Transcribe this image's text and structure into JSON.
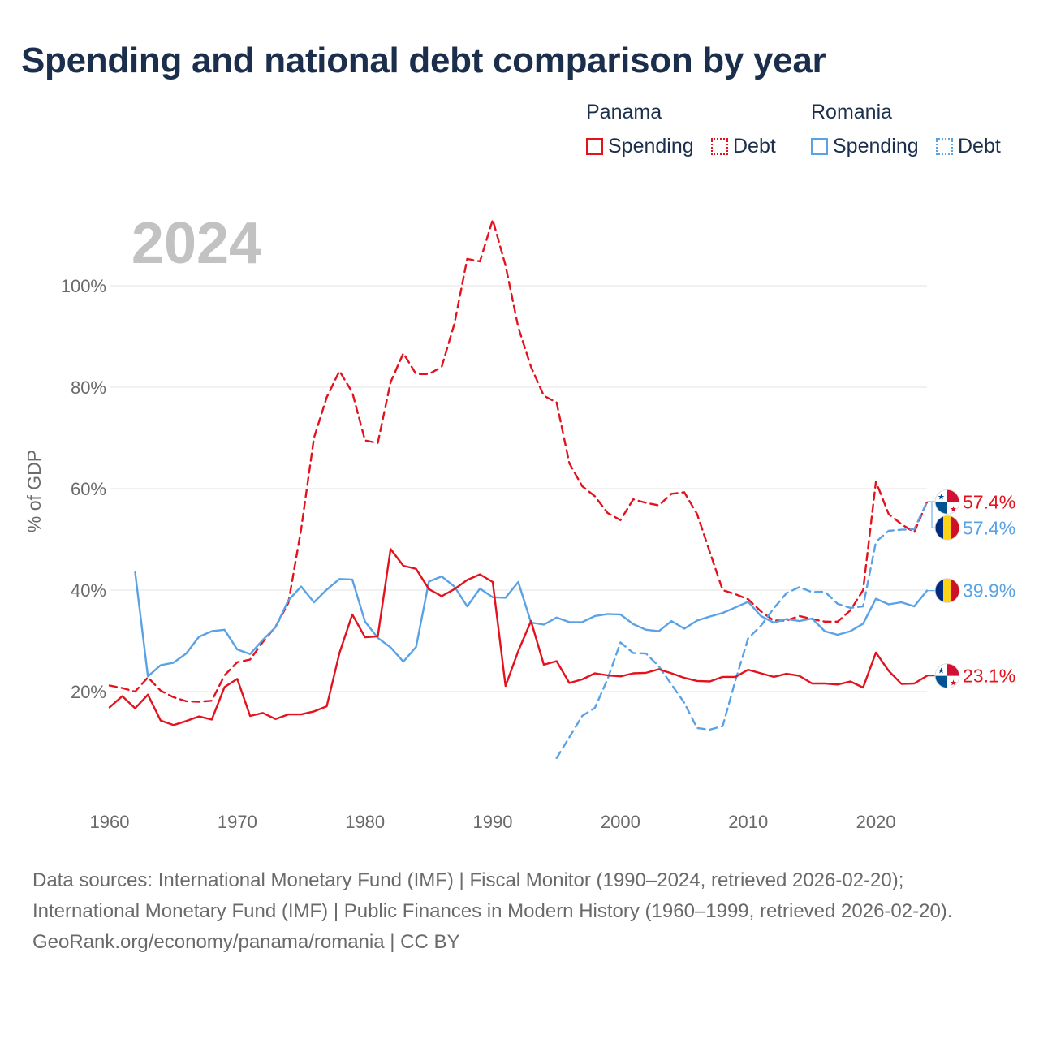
{
  "title": "Spending and national debt comparison by year",
  "legend": {
    "groups": [
      {
        "country": "Panama",
        "spending_label": "Spending",
        "debt_label": "Debt",
        "color": "#e3121c"
      },
      {
        "country": "Romania",
        "spending_label": "Spending",
        "debt_label": "Debt",
        "color": "#5aa2e6"
      }
    ]
  },
  "sources": {
    "text": "Data sources: International Monetary Fund (IMF) | Fiscal Monitor (1990–2024, retrieved 2026-02-20); International Monetary Fund (IMF) | Public Finances in Modern History (1960–1999, retrieved 2026-02-20).",
    "link": "GeoRank.org/economy/panama/romania | CC BY"
  },
  "chart_data": {
    "type": "line",
    "title": "Spending and national debt comparison by year",
    "year_label": "2024",
    "ylabel": "% of GDP",
    "xlabel": "",
    "xlim": [
      1960,
      2024
    ],
    "ylim": [
      0,
      118
    ],
    "x_ticks": [
      1960,
      1970,
      1980,
      1990,
      2000,
      2010,
      2020
    ],
    "y_ticks": [
      {
        "value": 20,
        "label": "20%"
      },
      {
        "value": 40,
        "label": "40%"
      },
      {
        "value": 60,
        "label": "60%"
      },
      {
        "value": 80,
        "label": "80%"
      },
      {
        "value": 100,
        "label": "100%"
      }
    ],
    "grid": true,
    "series": [
      {
        "name": "Panama Debt",
        "country": "Panama",
        "indicator": "Debt",
        "color": "#e3121c",
        "dashed": true,
        "end_label": "57.4%",
        "flag": "panama",
        "points": [
          [
            1960,
            21.2
          ],
          [
            1961,
            20.7
          ],
          [
            1962,
            20.0
          ],
          [
            1963,
            22.8
          ],
          [
            1964,
            20.2
          ],
          [
            1965,
            18.9
          ],
          [
            1966,
            18.1
          ],
          [
            1967,
            18.0
          ],
          [
            1968,
            18.2
          ],
          [
            1969,
            23.2
          ],
          [
            1970,
            25.8
          ],
          [
            1971,
            26.3
          ],
          [
            1972,
            29.8
          ],
          [
            1973,
            32.8
          ],
          [
            1974,
            37.5
          ],
          [
            1975,
            52.0
          ],
          [
            1976,
            70.0
          ],
          [
            1977,
            78.0
          ],
          [
            1978,
            83.2
          ],
          [
            1979,
            79.0
          ],
          [
            1980,
            69.5
          ],
          [
            1981,
            69.0
          ],
          [
            1982,
            81.0
          ],
          [
            1983,
            86.7
          ],
          [
            1984,
            82.6
          ],
          [
            1985,
            82.6
          ],
          [
            1986,
            84.0
          ],
          [
            1987,
            92.5
          ],
          [
            1988,
            105.3
          ],
          [
            1989,
            104.8
          ],
          [
            1990,
            113.0
          ],
          [
            1991,
            104.0
          ],
          [
            1992,
            91.8
          ],
          [
            1993,
            84.0
          ],
          [
            1994,
            78.3
          ],
          [
            1995,
            77.0
          ],
          [
            1996,
            65.0
          ],
          [
            1997,
            60.5
          ],
          [
            1998,
            58.5
          ],
          [
            1999,
            55.2
          ],
          [
            2000,
            53.8
          ],
          [
            2001,
            57.9
          ],
          [
            2002,
            57.2
          ],
          [
            2003,
            56.7
          ],
          [
            2004,
            59.0
          ],
          [
            2005,
            59.3
          ],
          [
            2006,
            55.0
          ],
          [
            2007,
            47.5
          ],
          [
            2008,
            40.0
          ],
          [
            2009,
            39.2
          ],
          [
            2010,
            38.2
          ],
          [
            2011,
            35.8
          ],
          [
            2012,
            34.0
          ],
          [
            2013,
            34.0
          ],
          [
            2014,
            34.9
          ],
          [
            2015,
            34.3
          ],
          [
            2016,
            33.8
          ],
          [
            2017,
            33.8
          ],
          [
            2018,
            36.0
          ],
          [
            2019,
            40.0
          ],
          [
            2020,
            61.4
          ],
          [
            2021,
            55.0
          ],
          [
            2022,
            53.0
          ],
          [
            2023,
            51.4
          ],
          [
            2024,
            57.4
          ]
        ]
      },
      {
        "name": "Romania Debt",
        "country": "Romania",
        "indicator": "Debt",
        "color": "#5aa2e6",
        "dashed": true,
        "end_label": "57.4%",
        "flag": "romania",
        "points": [
          [
            1995,
            6.9
          ],
          [
            1996,
            11.0
          ],
          [
            1997,
            15.2
          ],
          [
            1998,
            16.8
          ],
          [
            1999,
            22.5
          ],
          [
            2000,
            29.7
          ],
          [
            2001,
            27.6
          ],
          [
            2002,
            27.5
          ],
          [
            2003,
            25.0
          ],
          [
            2004,
            21.4
          ],
          [
            2005,
            17.8
          ],
          [
            2006,
            12.8
          ],
          [
            2007,
            12.5
          ],
          [
            2008,
            13.2
          ],
          [
            2009,
            22.2
          ],
          [
            2010,
            30.5
          ],
          [
            2011,
            33.0
          ],
          [
            2012,
            36.4
          ],
          [
            2013,
            39.4
          ],
          [
            2014,
            40.6
          ],
          [
            2015,
            39.6
          ],
          [
            2016,
            39.7
          ],
          [
            2017,
            37.3
          ],
          [
            2018,
            36.5
          ],
          [
            2019,
            36.8
          ],
          [
            2020,
            49.5
          ],
          [
            2021,
            51.7
          ],
          [
            2022,
            51.9
          ],
          [
            2023,
            52.0
          ],
          [
            2024,
            57.4
          ]
        ]
      },
      {
        "name": "Romania Spending",
        "country": "Romania",
        "indicator": "Spending",
        "color": "#5aa2e6",
        "dashed": false,
        "end_label": "39.9%",
        "flag": "romania",
        "points": [
          [
            1962,
            43.5
          ],
          [
            1963,
            23.0
          ],
          [
            1964,
            25.2
          ],
          [
            1965,
            25.7
          ],
          [
            1966,
            27.5
          ],
          [
            1967,
            30.8
          ],
          [
            1968,
            31.9
          ],
          [
            1969,
            32.2
          ],
          [
            1970,
            28.3
          ],
          [
            1971,
            27.4
          ],
          [
            1972,
            30.2
          ],
          [
            1973,
            32.7
          ],
          [
            1974,
            38.0
          ],
          [
            1975,
            40.7
          ],
          [
            1976,
            37.6
          ],
          [
            1977,
            40.1
          ],
          [
            1978,
            42.2
          ],
          [
            1979,
            42.1
          ],
          [
            1980,
            33.8
          ],
          [
            1981,
            30.6
          ],
          [
            1982,
            28.7
          ],
          [
            1983,
            25.9
          ],
          [
            1984,
            28.8
          ],
          [
            1985,
            41.7
          ],
          [
            1986,
            42.7
          ],
          [
            1987,
            40.7
          ],
          [
            1988,
            36.8
          ],
          [
            1989,
            40.3
          ],
          [
            1990,
            38.6
          ],
          [
            1991,
            38.5
          ],
          [
            1992,
            41.6
          ],
          [
            1993,
            33.6
          ],
          [
            1994,
            33.2
          ],
          [
            1995,
            34.6
          ],
          [
            1996,
            33.7
          ],
          [
            1997,
            33.7
          ],
          [
            1998,
            34.9
          ],
          [
            1999,
            35.3
          ],
          [
            2000,
            35.2
          ],
          [
            2001,
            33.3
          ],
          [
            2002,
            32.2
          ],
          [
            2003,
            31.9
          ],
          [
            2004,
            33.9
          ],
          [
            2005,
            32.4
          ],
          [
            2006,
            34.0
          ],
          [
            2007,
            34.8
          ],
          [
            2008,
            35.5
          ],
          [
            2009,
            36.6
          ],
          [
            2010,
            37.7
          ],
          [
            2011,
            34.9
          ],
          [
            2012,
            33.6
          ],
          [
            2013,
            34.3
          ],
          [
            2014,
            33.9
          ],
          [
            2015,
            34.4
          ],
          [
            2016,
            31.9
          ],
          [
            2017,
            31.2
          ],
          [
            2018,
            31.9
          ],
          [
            2019,
            33.4
          ],
          [
            2020,
            38.3
          ],
          [
            2021,
            37.2
          ],
          [
            2022,
            37.6
          ],
          [
            2023,
            36.8
          ],
          [
            2024,
            39.9
          ]
        ]
      },
      {
        "name": "Panama Spending",
        "country": "Panama",
        "indicator": "Spending",
        "color": "#e3121c",
        "dashed": false,
        "end_label": "23.1%",
        "flag": "panama",
        "points": [
          [
            1960,
            16.9
          ],
          [
            1961,
            19.1
          ],
          [
            1962,
            16.7
          ],
          [
            1963,
            19.4
          ],
          [
            1964,
            14.3
          ],
          [
            1965,
            13.4
          ],
          [
            1966,
            14.2
          ],
          [
            1967,
            15.1
          ],
          [
            1968,
            14.5
          ],
          [
            1969,
            20.9
          ],
          [
            1970,
            22.5
          ],
          [
            1971,
            15.2
          ],
          [
            1972,
            15.8
          ],
          [
            1973,
            14.6
          ],
          [
            1974,
            15.5
          ],
          [
            1975,
            15.5
          ],
          [
            1976,
            16.1
          ],
          [
            1977,
            17.1
          ],
          [
            1978,
            27.6
          ],
          [
            1979,
            35.2
          ],
          [
            1980,
            30.7
          ],
          [
            1981,
            30.9
          ],
          [
            1982,
            48.1
          ],
          [
            1983,
            44.8
          ],
          [
            1984,
            44.2
          ],
          [
            1985,
            40.2
          ],
          [
            1986,
            38.8
          ],
          [
            1987,
            40.2
          ],
          [
            1988,
            42.0
          ],
          [
            1989,
            43.1
          ],
          [
            1990,
            41.6
          ],
          [
            1991,
            21.1
          ],
          [
            1992,
            28.0
          ],
          [
            1993,
            33.9
          ],
          [
            1994,
            25.3
          ],
          [
            1995,
            26.0
          ],
          [
            1996,
            21.7
          ],
          [
            1997,
            22.4
          ],
          [
            1998,
            23.6
          ],
          [
            1999,
            23.2
          ],
          [
            2000,
            23.0
          ],
          [
            2001,
            23.6
          ],
          [
            2002,
            23.7
          ],
          [
            2003,
            24.4
          ],
          [
            2004,
            23.6
          ],
          [
            2005,
            22.7
          ],
          [
            2006,
            22.1
          ],
          [
            2007,
            22.0
          ],
          [
            2008,
            22.9
          ],
          [
            2009,
            22.9
          ],
          [
            2010,
            24.3
          ],
          [
            2011,
            23.6
          ],
          [
            2012,
            22.9
          ],
          [
            2013,
            23.5
          ],
          [
            2014,
            23.1
          ],
          [
            2015,
            21.6
          ],
          [
            2016,
            21.6
          ],
          [
            2017,
            21.4
          ],
          [
            2018,
            22.0
          ],
          [
            2019,
            20.8
          ],
          [
            2020,
            27.7
          ],
          [
            2021,
            24.1
          ],
          [
            2022,
            21.5
          ],
          [
            2023,
            21.6
          ],
          [
            2024,
            23.1
          ]
        ]
      }
    ]
  }
}
